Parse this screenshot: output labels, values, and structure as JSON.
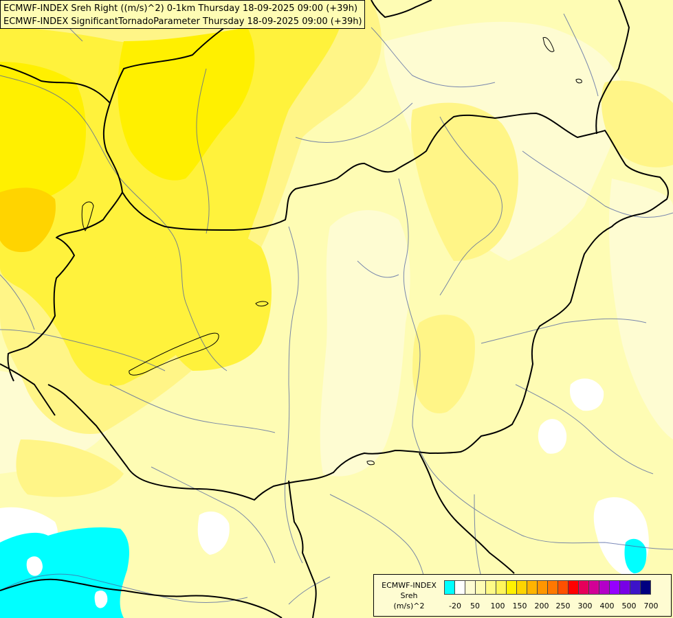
{
  "title": {
    "line1": "ECMWF-INDEX Sreh Right ((m/s)^2) 0-1km Thursday 18-09-2025 09:00 (+39h)",
    "line2": "ECMWF-INDEX SignificantTornadoParameter Thursday 18-09-2025 09:00 (+39h)"
  },
  "legend": {
    "model": "ECMWF-INDEX",
    "variable": "Sreh",
    "unit": "(m/s)^2",
    "colors": [
      "#00ffff",
      "#ffffff",
      "#fefcd2",
      "#fefcb4",
      "#fffa87",
      "#fff55a",
      "#fff000",
      "#ffd400",
      "#ffb400",
      "#ff9600",
      "#ff7800",
      "#ff5000",
      "#ff0000",
      "#e6005a",
      "#d20096",
      "#b400c8",
      "#9600ff",
      "#7800e6",
      "#3c14c8",
      "#000080"
    ],
    "ticks": [
      "-20",
      "50",
      "100",
      "150",
      "200",
      "250",
      "300",
      "400",
      "500",
      "700"
    ]
  }
}
